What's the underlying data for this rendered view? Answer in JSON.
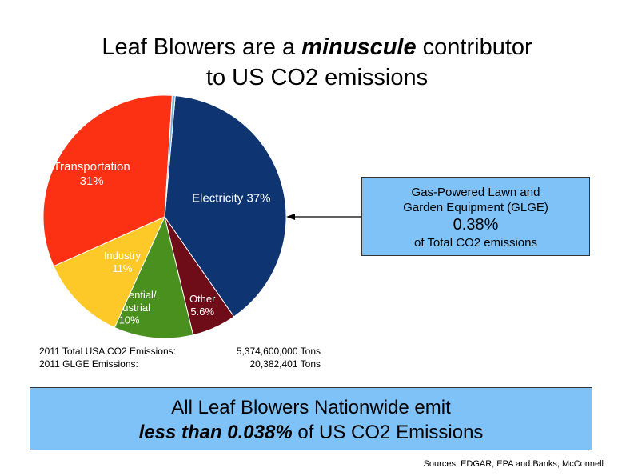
{
  "title": {
    "line1_prefix": "Leaf Blowers are a ",
    "line1_emphasis": "minuscule",
    "line1_suffix": " contributor",
    "line2": "to US CO2 emissions"
  },
  "chart_data": {
    "type": "pie",
    "slices": [
      {
        "label": "Electricity",
        "value_label": "37%",
        "value": 37,
        "color": "#0e3572"
      },
      {
        "label": "Other",
        "value_label": "5.6%",
        "value": 5.6,
        "color": "#6e0c18"
      },
      {
        "label": "Residential/ Industrial",
        "value_label": "10%",
        "value": 10,
        "color": "#4a901f"
      },
      {
        "label": "Industry",
        "value_label": "11%",
        "value": 11,
        "color": "#fcc928"
      },
      {
        "label": "Transportation",
        "value_label": "31%",
        "value": 31,
        "color": "#fc3114"
      },
      {
        "label": "",
        "value_label": "",
        "value": 0.38,
        "color": "#6fb8e8"
      }
    ]
  },
  "callout": {
    "line1": "Gas-Powered Lawn and",
    "line2": "Garden Equipment (GLGE)",
    "pct": "0.38%",
    "line4": "of Total CO2 emissions"
  },
  "stats": {
    "rows": [
      {
        "label": "2011 Total USA CO2 Emissions:",
        "value": "5,374,600,000 Tons"
      },
      {
        "label": "2011 GLGE Emissions:",
        "value": "20,382,401 Tons"
      }
    ]
  },
  "banner": {
    "line1": "All Leaf Blowers Nationwide emit",
    "line2_emphasis": "less than 0.038%",
    "line2_suffix": " of US CO2 Emissions"
  },
  "sources": "Sources: EDGAR, EPA and Banks, McConnell"
}
